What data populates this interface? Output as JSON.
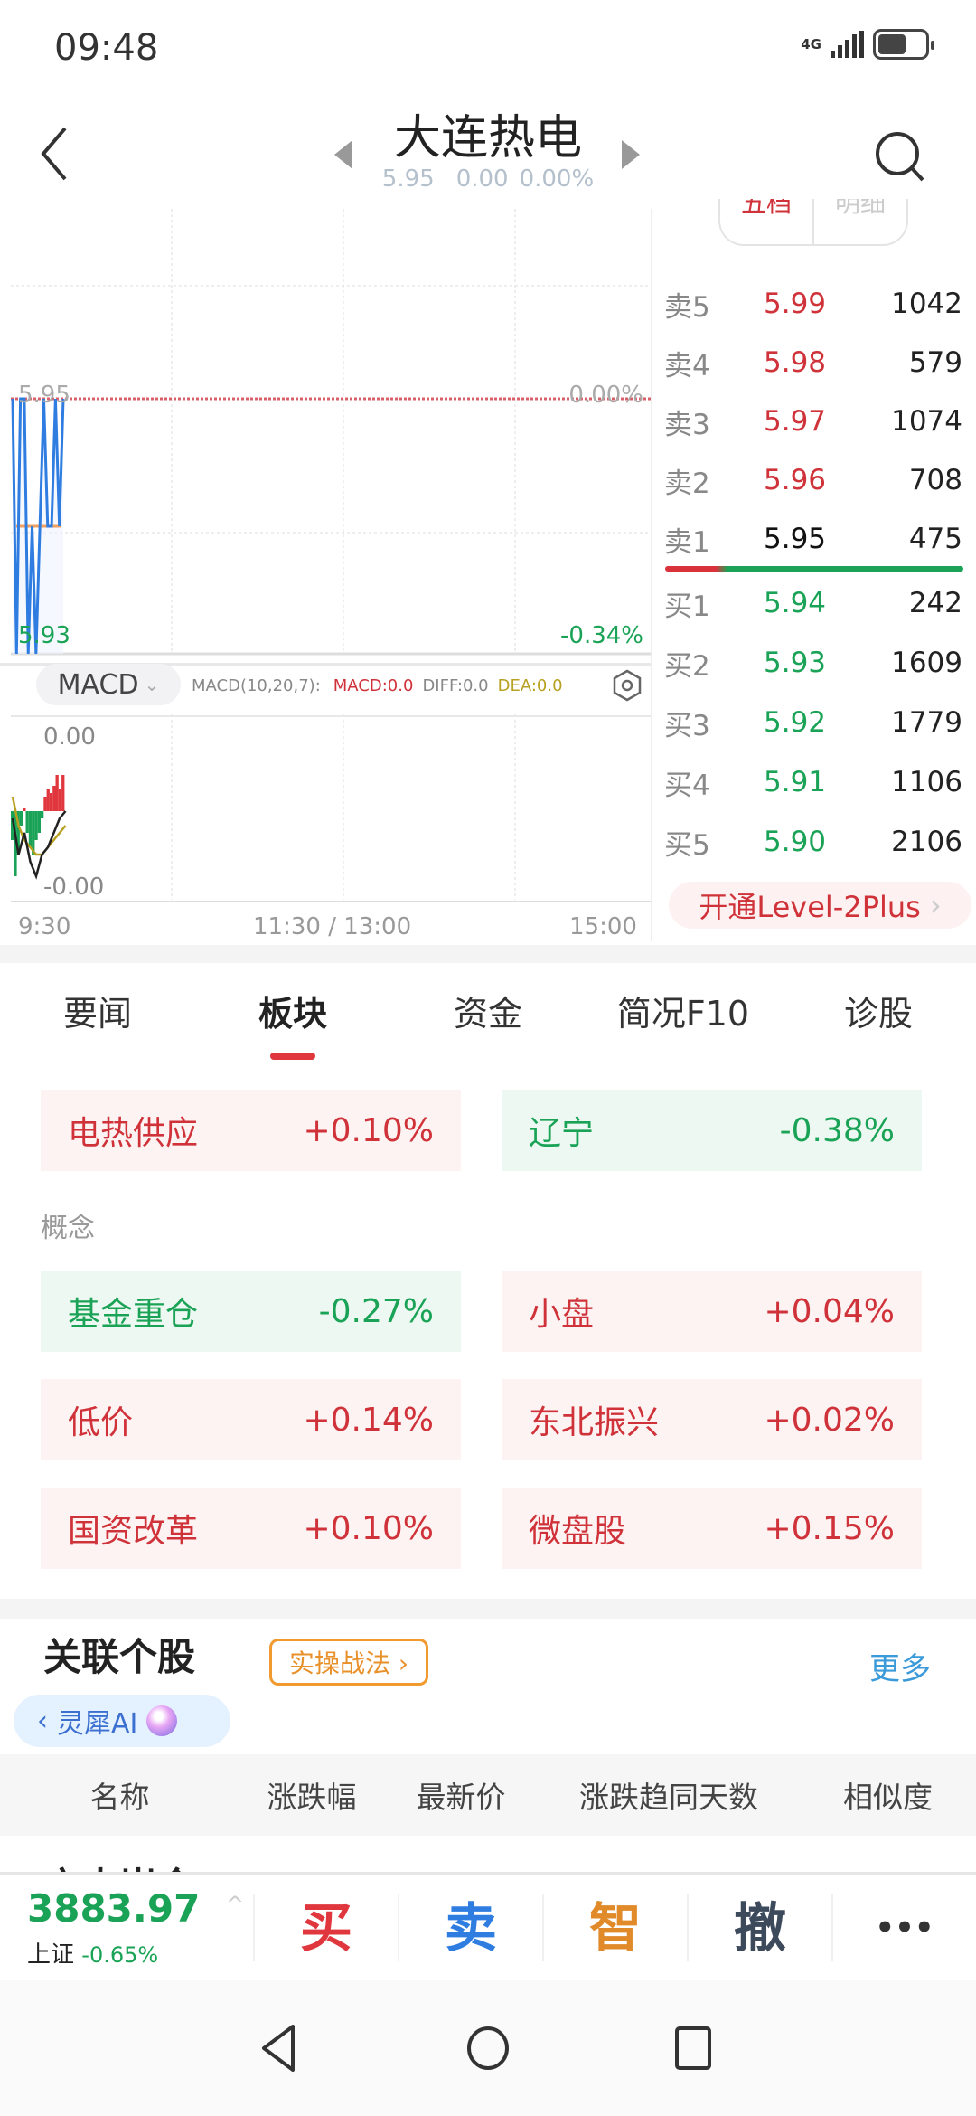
{
  "status_bar": {
    "time": "09:48",
    "network": "4G",
    "battery_level": 0.6
  },
  "header": {
    "title": "大连热电",
    "price": "5.95",
    "change": "0.00",
    "change_pct": "0.00%"
  },
  "chart": {
    "type": "line",
    "price_top_label": "5.95",
    "price_bottom_label": "5.93",
    "pct_top_label": "0.00%",
    "pct_bottom_label": "-0.34%",
    "x_ticks": [
      "9:30",
      "11:30 / 13:00",
      "15:00"
    ],
    "prices": [
      5.95,
      5.93,
      5.95,
      5.95,
      5.93,
      5.94,
      5.93,
      5.94,
      5.95,
      5.94,
      5.94,
      5.95,
      5.94,
      5.95
    ],
    "price_color": "#2f7de1",
    "ref_color": "#d9606a"
  },
  "macd": {
    "selector": "MACD",
    "params": "MACD(10,20,7):",
    "macd": "MACD:0.0",
    "diff": "DIFF:0.0",
    "dea": "DEA:0.0",
    "top_label": "0.00",
    "bottom_label": "-0.00",
    "hist": [
      -0.4,
      -0.9,
      -0.6,
      -0.2,
      0.05,
      -0.3,
      -0.5,
      -0.6,
      -0.4,
      -0.3,
      -0.1,
      0.2,
      0.3,
      0.25,
      0.35,
      0.5,
      0.3,
      0.5
    ],
    "diff_line": [
      -0.1,
      -0.6,
      -0.3,
      -0.7,
      -0.9,
      -0.6,
      -0.5,
      -0.3,
      -0.1,
      0.0
    ],
    "dea_line": [
      0.2,
      -0.2,
      -0.4,
      -0.5,
      -0.6,
      -0.6,
      -0.5,
      -0.4,
      -0.3,
      -0.2
    ]
  },
  "order_book": {
    "tabs": [
      "五档",
      "明细"
    ],
    "asks": [
      {
        "label": "卖5",
        "price": "5.99",
        "vol": "1042"
      },
      {
        "label": "卖4",
        "price": "5.98",
        "vol": "579"
      },
      {
        "label": "卖3",
        "price": "5.97",
        "vol": "1074"
      },
      {
        "label": "卖2",
        "price": "5.96",
        "vol": "708"
      },
      {
        "label": "卖1",
        "price": "5.95",
        "vol": "475"
      }
    ],
    "bids": [
      {
        "label": "买1",
        "price": "5.94",
        "vol": "242"
      },
      {
        "label": "买2",
        "price": "5.93",
        "vol": "1609"
      },
      {
        "label": "买3",
        "price": "5.92",
        "vol": "1779"
      },
      {
        "label": "买4",
        "price": "5.91",
        "vol": "1106"
      },
      {
        "label": "买5",
        "price": "5.90",
        "vol": "2106"
      }
    ],
    "level2": "开通Level-2Plus"
  },
  "tabs": [
    "要闻",
    "板块",
    "资金",
    "简况F10",
    "诊股"
  ],
  "sectors": {
    "industry": [
      {
        "name": "电热供应",
        "pct": "+0.10%",
        "dir": "up"
      },
      {
        "name": "辽宁",
        "pct": "-0.38%",
        "dir": "down"
      }
    ],
    "concept_label": "概念",
    "concepts": [
      {
        "name": "基金重仓",
        "pct": "-0.27%",
        "dir": "down"
      },
      {
        "name": "小盘",
        "pct": "+0.04%",
        "dir": "up"
      },
      {
        "name": "低价",
        "pct": "+0.14%",
        "dir": "up"
      },
      {
        "name": "东北振兴",
        "pct": "+0.02%",
        "dir": "up"
      },
      {
        "name": "国资改革",
        "pct": "+0.10%",
        "dir": "up"
      },
      {
        "name": "微盘股",
        "pct": "+0.15%",
        "dir": "up"
      }
    ]
  },
  "related": {
    "title": "关联个股",
    "tag": "实操战法 ›",
    "more": "更多",
    "ai_label": "灵犀AI",
    "columns": [
      "名称",
      "涨跌幅",
      "最新价",
      "涨跌趋同天数",
      "相似度"
    ],
    "first_row_peek": "方大炭金"
  },
  "bottom": {
    "index_value": "3883.97",
    "index_name": "上证",
    "index_pct": "-0.65%",
    "actions": [
      {
        "label": "买",
        "color": "#e0363e"
      },
      {
        "label": "卖",
        "color": "#2f7de1"
      },
      {
        "label": "智",
        "color": "#e08a2a"
      },
      {
        "label": "撤",
        "color": "#3d4a5c"
      },
      {
        "label": "•••",
        "color": "#333"
      }
    ]
  }
}
